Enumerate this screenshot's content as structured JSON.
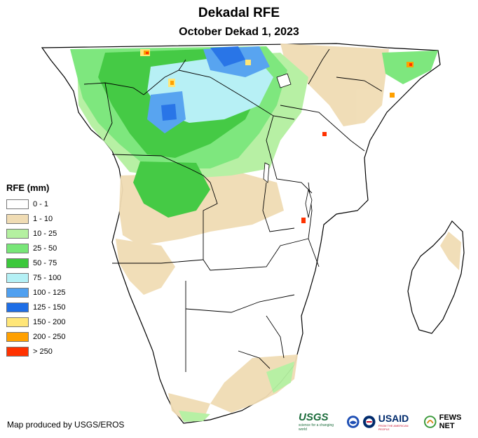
{
  "title": "Dekadal RFE",
  "subtitle": "October Dekad 1, 2023",
  "legend": {
    "title": "RFE (mm)",
    "items": [
      {
        "label": "0 - 1",
        "color": "#ffffff"
      },
      {
        "label": "1 - 10",
        "color": "#f0dcb4"
      },
      {
        "label": "10 - 25",
        "color": "#b4f0a0"
      },
      {
        "label": "25 - 50",
        "color": "#78e678"
      },
      {
        "label": "50 - 75",
        "color": "#3cc83c"
      },
      {
        "label": "75 - 100",
        "color": "#b4f0f5"
      },
      {
        "label": "100 - 125",
        "color": "#50a0f0"
      },
      {
        "label": "125 - 150",
        "color": "#1e6ee6"
      },
      {
        "label": "150 - 200",
        "color": "#ffe678"
      },
      {
        "label": "200 - 250",
        "color": "#ffa000"
      },
      {
        "label": "> 250",
        "color": "#ff3200"
      }
    ]
  },
  "credit": "Map produced by USGS/EROS",
  "logos": {
    "usgs": "USGS",
    "usgs_tagline": "science for a changing world",
    "usaid": "USAID",
    "usaid_tagline": "FROM THE AMERICAN PEOPLE",
    "fews": "FEWS NET"
  }
}
